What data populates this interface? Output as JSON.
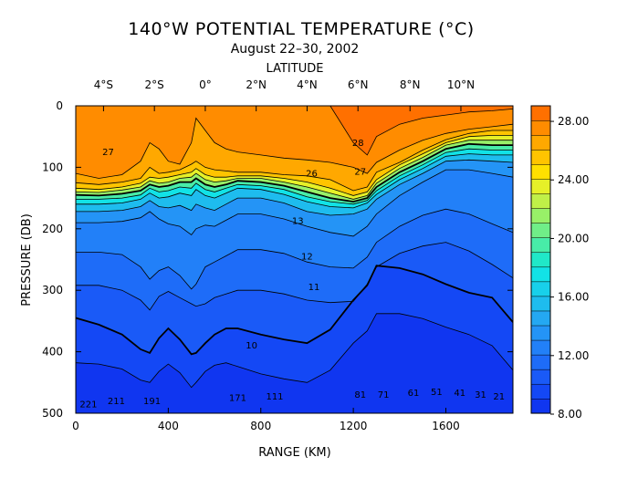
{
  "chart_data": {
    "type": "heatmap",
    "title": "140°W POTENTIAL TEMPERATURE (°C)",
    "subtitle": "August 22–30, 2002",
    "xlabel": "RANGE (KM)",
    "ylabel": "PRESSURE (DB)",
    "top_axis_label": "LATITUDE",
    "xlim": [
      0,
      1890
    ],
    "ylim": [
      500,
      0
    ],
    "x_ticks": [
      0,
      400,
      800,
      1200,
      1600
    ],
    "x_tick_labels": [
      "0",
      "400",
      "800",
      "1200",
      "1600"
    ],
    "y_ticks": [
      0,
      100,
      200,
      300,
      400,
      500
    ],
    "y_tick_labels": [
      "0",
      "100",
      "200",
      "300",
      "400",
      "500"
    ],
    "top_ticks": [
      {
        "label": "4°S",
        "km": 120
      },
      {
        "label": "2°S",
        "km": 340
      },
      {
        "label": "0°",
        "km": 560
      },
      {
        "label": "2°N",
        "km": 780
      },
      {
        "label": "4°N",
        "km": 1000
      },
      {
        "label": "6°N",
        "km": 1220
      },
      {
        "label": "8°N",
        "km": 1445
      },
      {
        "label": "10°N",
        "km": 1665
      }
    ],
    "colorbar": {
      "min": 8.0,
      "max": 29.0,
      "tick_values": [
        8,
        12,
        16,
        20,
        24,
        28
      ],
      "tick_labels": [
        "8.00",
        "12.00",
        "16.00",
        "20.00",
        "24.00",
        "28.00"
      ],
      "colors": [
        "#1036f0",
        "#1448f5",
        "#1a5af7",
        "#1e6cf8",
        "#2280f8",
        "#2494f6",
        "#24a8f2",
        "#1ebcee",
        "#18d0ea",
        "#12e2e6",
        "#20e8c8",
        "#48eca8",
        "#70ee88",
        "#98f068",
        "#c0f048",
        "#e6f028",
        "#ffe000",
        "#ffc400",
        "#ffa800",
        "#ff8c00",
        "#ff7000"
      ]
    },
    "profiles": {
      "x": [
        0,
        100,
        200,
        280,
        320,
        360,
        400,
        450,
        500,
        520,
        560,
        600,
        650,
        700,
        800,
        900,
        1000,
        1100,
        1200,
        1260,
        1300,
        1400,
        1500,
        1600,
        1700,
        1800,
        1890
      ],
      "isotherms": [
        {
          "t": 29,
          "depth": [
            0,
            0,
            0,
            0,
            0,
            0,
            0,
            0,
            0,
            0,
            0,
            0,
            0,
            0,
            0,
            0,
            0,
            0,
            0,
            0,
            0,
            0,
            0,
            0,
            0,
            0,
            0
          ]
        },
        {
          "t": 28,
          "depth": [
            0,
            0,
            0,
            0,
            0,
            0,
            0,
            0,
            0,
            0,
            0,
            0,
            0,
            0,
            0,
            0,
            0,
            0,
            60,
            80,
            50,
            30,
            20,
            15,
            10,
            8,
            5
          ]
        },
        {
          "t": 27,
          "depth": [
            110,
            118,
            112,
            90,
            60,
            70,
            90,
            95,
            60,
            20,
            40,
            60,
            70,
            75,
            80,
            85,
            88,
            92,
            100,
            110,
            92,
            72,
            56,
            45,
            38,
            34,
            30
          ]
        },
        {
          "t": 26,
          "depth": [
            125,
            128,
            124,
            118,
            100,
            110,
            108,
            104,
            95,
            90,
            100,
            104,
            106,
            108,
            108,
            112,
            114,
            120,
            138,
            132,
            108,
            92,
            72,
            55,
            45,
            40,
            40
          ]
        },
        {
          "t": 24,
          "depth": [
            134,
            136,
            132,
            126,
            116,
            118,
            116,
            112,
            108,
            102,
            112,
            116,
            116,
            114,
            114,
            118,
            124,
            134,
            146,
            140,
            120,
            96,
            78,
            60,
            50,
            48,
            48
          ]
        },
        {
          "t": 22,
          "depth": [
            140,
            141,
            137,
            132,
            122,
            126,
            124,
            118,
            116,
            110,
            120,
            124,
            122,
            118,
            118,
            124,
            132,
            142,
            152,
            146,
            126,
            102,
            84,
            64,
            56,
            56,
            56
          ]
        },
        {
          "t": 20,
          "depth": [
            145,
            146,
            143,
            138,
            128,
            132,
            130,
            124,
            124,
            118,
            128,
            132,
            128,
            122,
            124,
            130,
            140,
            150,
            156,
            150,
            132,
            108,
            90,
            70,
            62,
            64,
            64
          ]
        },
        {
          "t": 18,
          "depth": [
            152,
            152,
            150,
            145,
            134,
            140,
            138,
            132,
            134,
            126,
            136,
            140,
            134,
            128,
            130,
            136,
            148,
            156,
            160,
            154,
            138,
            114,
            96,
            76,
            70,
            72,
            72
          ]
        },
        {
          "t": 16,
          "depth": [
            160,
            160,
            158,
            152,
            142,
            150,
            148,
            142,
            146,
            136,
            146,
            150,
            142,
            134,
            136,
            144,
            156,
            164,
            166,
            158,
            144,
            120,
            102,
            82,
            78,
            80,
            80
          ]
        },
        {
          "t": 14,
          "depth": [
            172,
            172,
            170,
            164,
            154,
            164,
            166,
            162,
            170,
            160,
            166,
            170,
            160,
            150,
            150,
            158,
            172,
            178,
            176,
            168,
            152,
            128,
            110,
            90,
            88,
            90,
            92
          ]
        },
        {
          "t": 13,
          "depth": [
            190,
            190,
            188,
            182,
            172,
            184,
            192,
            196,
            210,
            200,
            194,
            196,
            186,
            176,
            176,
            184,
            196,
            206,
            212,
            196,
            176,
            146,
            124,
            104,
            104,
            110,
            116
          ]
        },
        {
          "t": 12,
          "depth": [
            238,
            238,
            242,
            262,
            282,
            268,
            262,
            276,
            298,
            290,
            262,
            254,
            244,
            234,
            234,
            240,
            254,
            262,
            264,
            246,
            222,
            196,
            178,
            168,
            176,
            192,
            206
          ]
        },
        {
          "t": 11,
          "depth": [
            292,
            292,
            300,
            316,
            332,
            310,
            302,
            312,
            322,
            326,
            322,
            312,
            306,
            300,
            300,
            306,
            316,
            320,
            318,
            290,
            262,
            240,
            228,
            222,
            236,
            258,
            280
          ]
        },
        {
          "t": 10,
          "depth": [
            345,
            356,
            372,
            396,
            402,
            378,
            362,
            380,
            404,
            402,
            386,
            372,
            362,
            362,
            372,
            380,
            386,
            364,
            316,
            292,
            260,
            264,
            274,
            290,
            304,
            312,
            352
          ]
        },
        {
          "t": 9,
          "depth": [
            418,
            420,
            428,
            446,
            450,
            432,
            420,
            434,
            458,
            450,
            432,
            422,
            418,
            424,
            436,
            444,
            450,
            430,
            386,
            366,
            338,
            338,
            346,
            360,
            372,
            390,
            430
          ]
        },
        {
          "t": 8,
          "depth": [
            500,
            500,
            500,
            500,
            500,
            500,
            500,
            500,
            500,
            500,
            500,
            500,
            500,
            500,
            500,
            500,
            500,
            500,
            500,
            500,
            500,
            500,
            500,
            500,
            500,
            500,
            500
          ]
        }
      ]
    },
    "contour_labels": [
      {
        "text": "27",
        "x": 140,
        "y": 80
      },
      {
        "text": "28",
        "x": 1220,
        "y": 65
      },
      {
        "text": "27",
        "x": 1230,
        "y": 112
      },
      {
        "text": "26",
        "x": 1020,
        "y": 115
      },
      {
        "text": "13",
        "x": 960,
        "y": 192
      },
      {
        "text": "12",
        "x": 1000,
        "y": 250
      },
      {
        "text": "11",
        "x": 1030,
        "y": 300
      },
      {
        "text": "10",
        "x": 760,
        "y": 395
      },
      {
        "text": "221",
        "x": 55,
        "y": 490
      },
      {
        "text": "211",
        "x": 175,
        "y": 485
      },
      {
        "text": "191",
        "x": 330,
        "y": 485
      },
      {
        "text": "171",
        "x": 700,
        "y": 480
      },
      {
        "text": "111",
        "x": 860,
        "y": 478
      },
      {
        "text": "81",
        "x": 1230,
        "y": 475
      },
      {
        "text": "71",
        "x": 1330,
        "y": 475
      },
      {
        "text": "61",
        "x": 1460,
        "y": 472
      },
      {
        "text": "51",
        "x": 1560,
        "y": 470
      },
      {
        "text": "41",
        "x": 1660,
        "y": 472
      },
      {
        "text": "31",
        "x": 1750,
        "y": 475
      },
      {
        "text": "21",
        "x": 1830,
        "y": 478
      }
    ]
  }
}
